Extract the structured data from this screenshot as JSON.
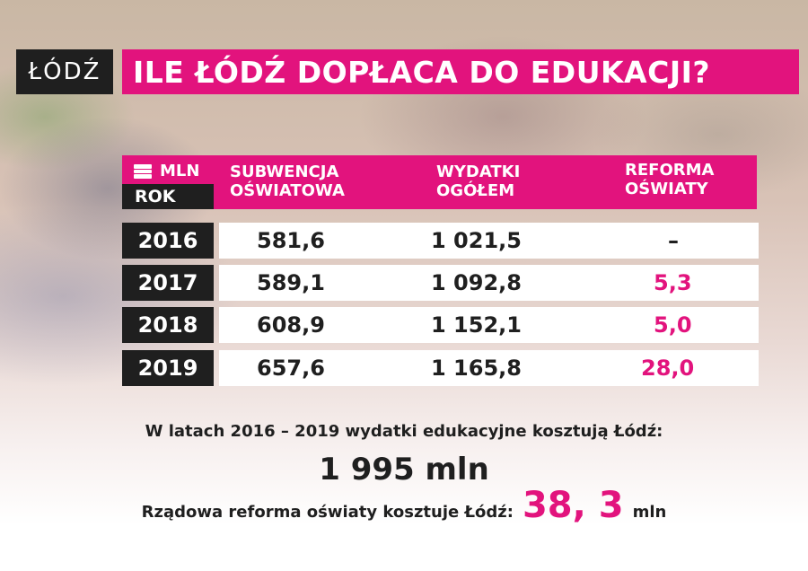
{
  "logo_text": "ŁÓDŹ",
  "title": "ILE ŁÓDŹ DOPŁACA DO EDUKACJI?",
  "colors": {
    "accent": "#e2137d",
    "dark": "#1f1f1f"
  },
  "header": {
    "unit_icon": "money-stack-icon",
    "unit": "MLN",
    "year": "ROK",
    "col1": [
      "SUBWENCJA",
      "OŚWIATOWA"
    ],
    "col2": [
      "WYDATKI",
      "OGÓŁEM"
    ],
    "col3": [
      "REFORMA",
      "OŚWIATY"
    ]
  },
  "chart_data": {
    "type": "table",
    "columns": [
      "ROK",
      "SUBWENCJA OŚWIATOWA",
      "WYDATKI OGÓŁEM",
      "REFORMA OŚWIATY"
    ],
    "unit": "MLN",
    "rows": [
      [
        "2016",
        "581,6",
        "1 021,5",
        "–"
      ],
      [
        "2017",
        "589,1",
        "1 092,8",
        "5,3"
      ],
      [
        "2018",
        "608,9",
        "1 152,1",
        "5,0"
      ],
      [
        "2019",
        "657,6",
        "1 165,8",
        "28,0"
      ]
    ]
  },
  "footer": {
    "line1": "W latach 2016 – 2019 wydatki edukacyjne kosztują Łódź:",
    "total": "1 995 mln",
    "line3": "Rządowa reforma oświaty kosztuje Łódź:",
    "reform_total": "38, 3",
    "reform_unit": "mln"
  }
}
